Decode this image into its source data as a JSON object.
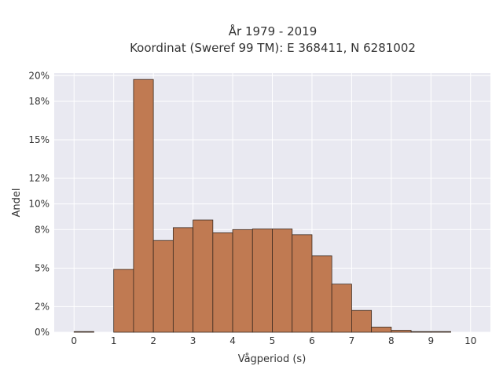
{
  "chart_data": {
    "type": "bar",
    "title": "År 1979 - 2019",
    "subtitle": "Koordinat (Sweref 99 TM): E 368411, N 6281002",
    "xlabel": "Vågperiod (s)",
    "ylabel": "Andel",
    "xlim": [
      -0.5,
      10.5
    ],
    "ylim": [
      0,
      20.2
    ],
    "x_ticks": [
      "0",
      "1",
      "2",
      "3",
      "4",
      "5",
      "6",
      "7",
      "8",
      "9",
      "10"
    ],
    "y_ticks": [
      "0%",
      "2%",
      "5%",
      "8%",
      "10%",
      "12%",
      "15%",
      "18%",
      "20%"
    ],
    "bin_width": 0.5,
    "bins": [
      {
        "start": 0.0,
        "value": 0.05
      },
      {
        "start": 1.0,
        "value": 4.9
      },
      {
        "start": 1.5,
        "value": 19.7
      },
      {
        "start": 2.0,
        "value": 7.15
      },
      {
        "start": 2.5,
        "value": 8.15
      },
      {
        "start": 3.0,
        "value": 8.75
      },
      {
        "start": 3.5,
        "value": 7.75
      },
      {
        "start": 4.0,
        "value": 8.0
      },
      {
        "start": 4.5,
        "value": 8.05
      },
      {
        "start": 5.0,
        "value": 8.05
      },
      {
        "start": 5.5,
        "value": 7.6
      },
      {
        "start": 6.0,
        "value": 5.95
      },
      {
        "start": 6.5,
        "value": 3.75
      },
      {
        "start": 7.0,
        "value": 1.7
      },
      {
        "start": 7.5,
        "value": 0.4
      },
      {
        "start": 8.0,
        "value": 0.15
      },
      {
        "start": 8.5,
        "value": 0.05
      },
      {
        "start": 9.0,
        "value": 0.05
      }
    ],
    "bar_color": "#c07a52",
    "bar_edge_color": "#3a2a20",
    "grid": true,
    "background_color": "#e9e9f1"
  }
}
